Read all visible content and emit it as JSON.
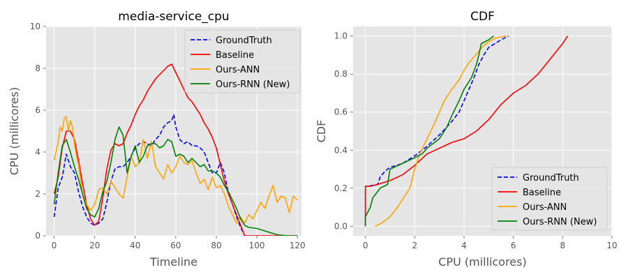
{
  "chart_data": [
    {
      "type": "line",
      "title": "media-service_cpu",
      "xlabel": "Timeline",
      "ylabel": "CPU (millicores)",
      "xlim": [
        -4,
        122
      ],
      "ylim": [
        0,
        10
      ],
      "xticks": [
        0,
        20,
        40,
        60,
        80,
        100,
        120
      ],
      "yticks": [
        0,
        2,
        4,
        6,
        8,
        10
      ],
      "grid": true,
      "legend_position": "upper-right",
      "series": [
        {
          "name": "GroundTruth",
          "color": "#0000ff",
          "dash": "dashed",
          "x": [
            0,
            2,
            4,
            6,
            8,
            10,
            12,
            14,
            16,
            18,
            20,
            22,
            24,
            26,
            28,
            30,
            32,
            34,
            36,
            38,
            40,
            42,
            44,
            46,
            48,
            50,
            52,
            54,
            56,
            58,
            59,
            60,
            62,
            64,
            66,
            68,
            70,
            72,
            74,
            76,
            78,
            80,
            82,
            84,
            86,
            88,
            90,
            92,
            94,
            96,
            100,
            110,
            120
          ],
          "y": [
            0.9,
            2.3,
            2.8,
            3.9,
            3.3,
            3.0,
            2.1,
            1.4,
            0.9,
            0.6,
            0.5,
            0.6,
            0.8,
            1.6,
            2.6,
            3.2,
            3.3,
            3.3,
            3.5,
            3.8,
            4.2,
            4.4,
            4.5,
            4.4,
            4.3,
            4.6,
            4.8,
            5.2,
            5.4,
            5.5,
            5.8,
            5.2,
            4.6,
            4.4,
            4.5,
            4.3,
            4.3,
            4.2,
            4.0,
            3.5,
            3.0,
            3.0,
            3.5,
            3.0,
            2.0,
            1.5,
            0.9,
            0.4,
            0.0,
            0.0,
            0.0,
            0.0,
            0.0
          ]
        },
        {
          "name": "Baseline",
          "color": "#ff0000",
          "dash": "solid",
          "x": [
            0,
            2,
            4,
            6,
            8,
            10,
            12,
            14,
            16,
            18,
            20,
            22,
            24,
            26,
            28,
            30,
            32,
            34,
            36,
            38,
            40,
            42,
            44,
            46,
            48,
            50,
            52,
            54,
            56,
            58,
            60,
            62,
            64,
            66,
            68,
            70,
            72,
            74,
            76,
            78,
            80,
            82,
            84,
            86,
            88,
            90,
            92,
            94,
            96,
            100,
            110,
            120
          ],
          "y": [
            2.0,
            2.8,
            4.2,
            5.0,
            5.0,
            4.6,
            3.6,
            2.5,
            1.5,
            0.8,
            0.5,
            0.7,
            1.8,
            3.2,
            4.1,
            4.4,
            4.3,
            4.4,
            4.9,
            5.3,
            5.8,
            6.2,
            6.5,
            6.9,
            7.2,
            7.5,
            7.7,
            7.9,
            8.1,
            8.2,
            7.8,
            7.4,
            7.0,
            6.6,
            6.4,
            6.1,
            5.8,
            5.4,
            5.1,
            4.7,
            4.2,
            3.4,
            2.6,
            2.0,
            1.5,
            1.0,
            0.5,
            0.0,
            0.0,
            0.0,
            0.0,
            0.0
          ]
        },
        {
          "name": "Ours-ANN",
          "color": "#ffa500",
          "dash": "solid",
          "x": [
            0,
            2,
            3,
            4,
            5,
            6,
            7,
            8,
            9,
            10,
            11,
            12,
            13,
            14,
            16,
            18,
            20,
            22,
            24,
            26,
            28,
            30,
            32,
            34,
            36,
            38,
            40,
            42,
            44,
            46,
            48,
            50,
            52,
            54,
            56,
            58,
            60,
            62,
            64,
            66,
            68,
            70,
            72,
            74,
            76,
            78,
            80,
            82,
            84,
            86,
            88,
            90,
            92,
            94,
            96,
            98,
            100,
            102,
            104,
            106,
            108,
            110,
            112,
            114,
            116,
            118,
            120
          ],
          "y": [
            3.6,
            4.5,
            5.2,
            5.0,
            5.6,
            5.7,
            5.0,
            5.5,
            5.2,
            4.4,
            3.8,
            3.4,
            2.7,
            2.0,
            1.5,
            1.2,
            1.5,
            2.2,
            2.3,
            2.0,
            2.6,
            2.3,
            2.0,
            1.8,
            2.8,
            3.8,
            3.3,
            3.5,
            4.6,
            3.7,
            4.5,
            3.3,
            3.0,
            2.7,
            3.4,
            3.0,
            3.3,
            3.8,
            3.5,
            3.4,
            3.6,
            3.0,
            2.5,
            2.7,
            2.2,
            2.8,
            2.3,
            2.4,
            2.0,
            1.4,
            1.0,
            0.6,
            0.9,
            0.6,
            1.0,
            0.8,
            1.2,
            1.6,
            1.3,
            1.9,
            2.4,
            1.6,
            1.9,
            1.8,
            1.1,
            1.9,
            1.7
          ]
        },
        {
          "name": "Ours-RNN (New)",
          "color": "#008000",
          "dash": "solid",
          "x": [
            0,
            2,
            4,
            6,
            8,
            10,
            12,
            14,
            16,
            18,
            20,
            22,
            24,
            26,
            28,
            30,
            32,
            34,
            36,
            38,
            40,
            42,
            44,
            46,
            48,
            50,
            52,
            54,
            56,
            58,
            60,
            62,
            64,
            66,
            68,
            70,
            72,
            74,
            76,
            78,
            80,
            82,
            84,
            86,
            88,
            90,
            92,
            94,
            96,
            100,
            105,
            110,
            115,
            120
          ],
          "y": [
            1.5,
            3.0,
            4.3,
            4.6,
            4.0,
            3.3,
            2.7,
            2.0,
            1.3,
            1.0,
            0.9,
            1.3,
            2.1,
            2.6,
            3.5,
            4.6,
            5.2,
            4.8,
            3.0,
            3.8,
            4.3,
            3.5,
            3.8,
            4.3,
            4.4,
            4.4,
            4.2,
            4.3,
            4.6,
            4.5,
            3.8,
            3.9,
            3.8,
            3.5,
            3.7,
            3.5,
            3.3,
            3.4,
            3.1,
            3.1,
            3.0,
            2.8,
            2.4,
            2.1,
            1.7,
            1.3,
            0.8,
            0.5,
            0.4,
            0.35,
            0.2,
            0.05,
            0.0,
            0.0
          ]
        }
      ]
    },
    {
      "type": "line",
      "title": "CDF",
      "xlabel": "CPU (millicores)",
      "ylabel": "CDF",
      "xlim": [
        -0.5,
        10
      ],
      "ylim": [
        -0.05,
        1.05
      ],
      "xticks": [
        0,
        2,
        4,
        6,
        8,
        10
      ],
      "yticks": [
        0.0,
        0.2,
        0.4,
        0.6,
        0.8,
        1.0
      ],
      "ytick_labels": [
        "0.0",
        "0.2",
        "0.4",
        "0.6",
        "0.8",
        "1.0"
      ],
      "grid": true,
      "legend_position": "lower-right",
      "series": [
        {
          "name": "GroundTruth",
          "color": "#0000ff",
          "dash": "dashed",
          "x": [
            0.0,
            0.0,
            0.1,
            0.5,
            0.6,
            0.8,
            1.0,
            1.5,
            2.0,
            2.5,
            3.0,
            3.5,
            3.8,
            4.0,
            4.2,
            4.4,
            4.6,
            4.8,
            5.0,
            5.5,
            5.8
          ],
          "y": [
            0.0,
            0.21,
            0.21,
            0.22,
            0.26,
            0.29,
            0.31,
            0.33,
            0.37,
            0.42,
            0.48,
            0.55,
            0.6,
            0.66,
            0.72,
            0.78,
            0.85,
            0.9,
            0.94,
            0.98,
            1.0
          ]
        },
        {
          "name": "Baseline",
          "color": "#ff0000",
          "dash": "solid",
          "x": [
            0.0,
            0.0,
            0.2,
            0.5,
            1.0,
            1.5,
            2.0,
            2.5,
            3.0,
            3.5,
            4.0,
            4.5,
            5.0,
            5.5,
            6.0,
            6.5,
            7.0,
            7.5,
            8.0,
            8.2
          ],
          "y": [
            0.0,
            0.21,
            0.21,
            0.22,
            0.24,
            0.27,
            0.32,
            0.38,
            0.41,
            0.44,
            0.46,
            0.5,
            0.56,
            0.64,
            0.7,
            0.74,
            0.8,
            0.88,
            0.96,
            1.0
          ]
        },
        {
          "name": "Ours-ANN",
          "color": "#ffa500",
          "dash": "solid",
          "x": [
            0.4,
            0.7,
            1.0,
            1.3,
            1.5,
            1.8,
            2.0,
            2.2,
            2.5,
            2.8,
            3.0,
            3.2,
            3.5,
            3.8,
            4.0,
            4.2,
            4.4,
            4.6,
            4.8,
            5.0,
            5.3,
            5.7
          ],
          "y": [
            0.0,
            0.02,
            0.05,
            0.1,
            0.14,
            0.2,
            0.3,
            0.38,
            0.46,
            0.54,
            0.6,
            0.66,
            0.72,
            0.77,
            0.82,
            0.86,
            0.89,
            0.92,
            0.95,
            0.97,
            0.99,
            1.0
          ]
        },
        {
          "name": "Ours-RNN (New)",
          "color": "#008000",
          "dash": "solid",
          "x": [
            0.0,
            0.0,
            0.2,
            0.3,
            0.6,
            0.9,
            1.0,
            1.5,
            2.0,
            2.3,
            2.5,
            3.0,
            3.3,
            3.5,
            3.8,
            4.0,
            4.3,
            4.5,
            4.6,
            4.7,
            5.0,
            5.2
          ],
          "y": [
            0.0,
            0.05,
            0.1,
            0.15,
            0.2,
            0.22,
            0.3,
            0.33,
            0.36,
            0.38,
            0.41,
            0.46,
            0.52,
            0.58,
            0.66,
            0.72,
            0.78,
            0.85,
            0.9,
            0.96,
            0.98,
            1.0
          ]
        }
      ]
    }
  ]
}
